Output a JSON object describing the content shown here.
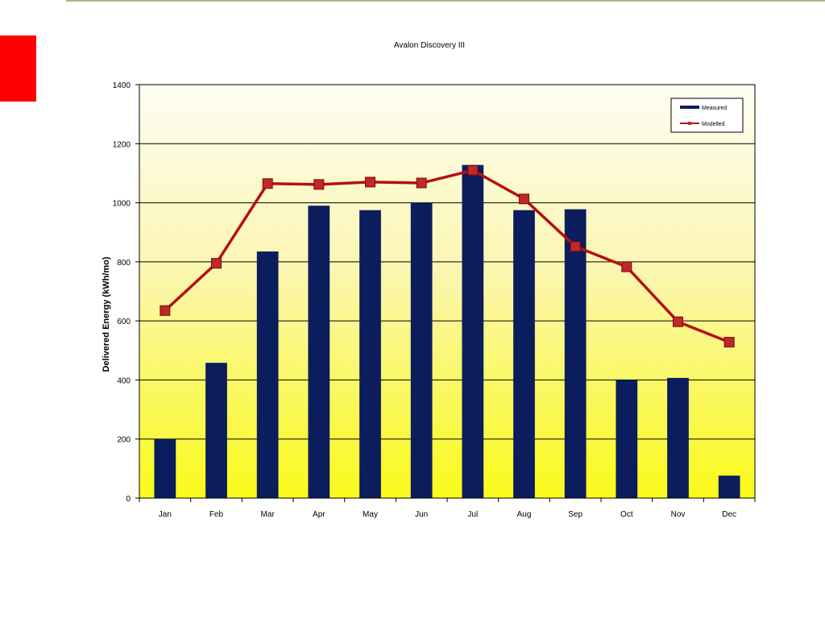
{
  "slide": {
    "accent_color": "#ff0000",
    "rule_color": "#b8b487"
  },
  "chart_data": {
    "type": "bar",
    "title": "Avalon Discovery III",
    "xlabel": "",
    "ylabel": "Delivered Energy (kWh/mo)",
    "categories": [
      "Jan",
      "Feb",
      "Mar",
      "Apr",
      "May",
      "Jun",
      "Jul",
      "Aug",
      "Sep",
      "Oct",
      "Nov",
      "Dec"
    ],
    "ylim": [
      0,
      1400
    ],
    "yticks": [
      0,
      200,
      400,
      600,
      800,
      1000,
      1200,
      1400
    ],
    "grid": true,
    "legend_position": "top-right",
    "background": "gradient from light cream at top to yellow at bottom",
    "series": [
      {
        "name": "Measured",
        "kind": "bar",
        "color": "#0b1d5c",
        "values": [
          200,
          458,
          835,
          990,
          975,
          1000,
          1128,
          975,
          978,
          400,
          407,
          76
        ]
      },
      {
        "name": "Modelled",
        "kind": "line",
        "color": "#b80f0f",
        "marker_color": "#c0282b",
        "values": [
          635,
          795,
          1065,
          1062,
          1070,
          1067,
          1110,
          1013,
          852,
          783,
          597,
          528
        ]
      }
    ]
  }
}
